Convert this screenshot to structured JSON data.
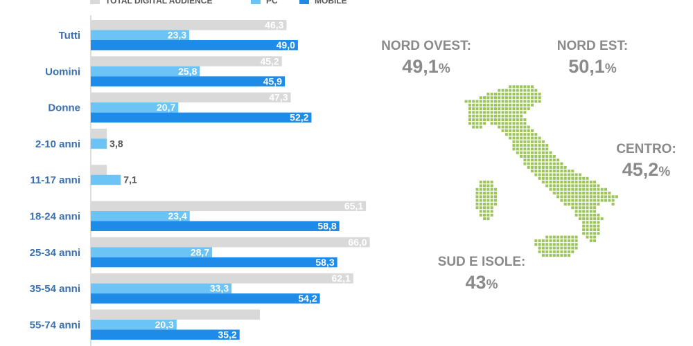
{
  "chart_data": {
    "type": "bar",
    "orientation": "horizontal",
    "categories": [
      "Tutti",
      "Uomini",
      "Donne",
      "2-10 anni",
      "11-17 anni",
      "18-24 anni",
      "25-34 anni",
      "35-54 anni",
      "55-74 anni"
    ],
    "series": [
      {
        "name": "TOTAL DIGITAL AUDIENCE",
        "color": "#d9d9d9",
        "values": [
          46.3,
          45.2,
          47.3,
          null,
          null,
          65.1,
          66.0,
          62.1,
          null
        ],
        "labels": [
          "46,3",
          "45,2",
          "47,3",
          "",
          "",
          "65,1",
          "66,0",
          "62,1",
          ""
        ]
      },
      {
        "name": "PC",
        "color": "#6cc3f5",
        "values": [
          23.3,
          25.8,
          20.7,
          3.8,
          7.1,
          23.4,
          28.7,
          33.3,
          20.3
        ],
        "labels": [
          "23,3",
          "25,8",
          "20,7",
          "3,8",
          "7,1",
          "23,4",
          "28,7",
          "33,3",
          "20,3"
        ]
      },
      {
        "name": "MOBILE",
        "color": "#1f8be8",
        "values": [
          49.0,
          45.9,
          52.2,
          null,
          null,
          58.8,
          58.3,
          54.2,
          35.2
        ],
        "labels": [
          "49,0",
          "45,9",
          "52,2",
          "",
          "",
          "58,8",
          "58,3",
          "54,2",
          "35,2"
        ]
      }
    ],
    "unlabeled_gray_bars": {
      "2-10 anni": 3.8,
      "11-17 anni": 3.8,
      "55-74 anni": 40.0
    },
    "xlim": [
      0,
      70
    ],
    "legend_position": "top"
  },
  "regions": [
    {
      "name": "NORD OVEST:",
      "value": "49,1",
      "unit": "%"
    },
    {
      "name": "NORD EST:",
      "value": "50,1",
      "unit": "%"
    },
    {
      "name": "CENTRO:",
      "value": "45,2",
      "unit": "%"
    },
    {
      "name": "SUD E ISOLE:",
      "value": "43",
      "unit": "%"
    }
  ],
  "colors": {
    "category_label": "#3a6fb0",
    "region_text": "#8a8a8a",
    "map": "#9bc45a"
  },
  "icons": {
    "map": "italy-map-icon"
  }
}
